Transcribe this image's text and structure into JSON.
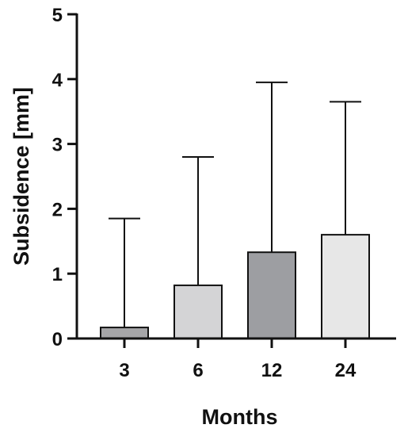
{
  "chart_data": {
    "type": "bar",
    "title": "",
    "xlabel": "Months",
    "ylabel": "Subsidence [mm]",
    "categories": [
      "3",
      "6",
      "12",
      "24"
    ],
    "values": [
      0.17,
      0.82,
      1.33,
      1.6
    ],
    "error_upper": [
      1.85,
      2.8,
      3.95,
      3.65
    ],
    "bar_colors": [
      "#a6a6a8",
      "#d4d4d6",
      "#9d9ea2",
      "#e7e7e7"
    ],
    "ylim": [
      0,
      5
    ],
    "yticks": [
      "0",
      "1",
      "2",
      "3",
      "4",
      "5"
    ],
    "grid": false,
    "legend": "none"
  }
}
